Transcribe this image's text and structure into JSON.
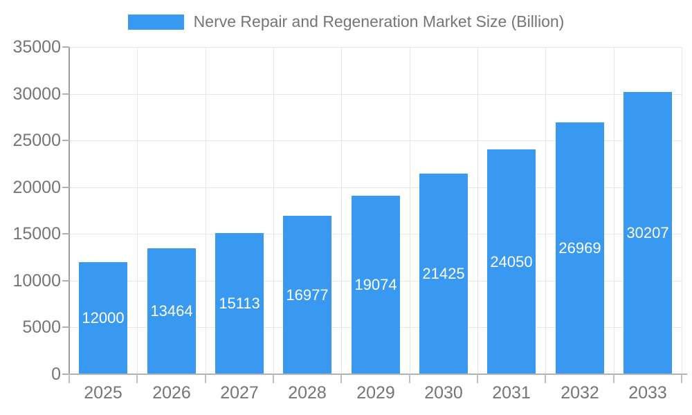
{
  "legend": {
    "swatch_icon": "legend-color-swatch"
  },
  "chart_data": {
    "type": "bar",
    "title": "Nerve Repair and Regeneration Market Size (Billion)",
    "xlabel": "",
    "ylabel": "",
    "categories": [
      "2025",
      "2026",
      "2027",
      "2028",
      "2029",
      "2030",
      "2031",
      "2032",
      "2033"
    ],
    "values": [
      12000,
      13464,
      15113,
      16977,
      19074,
      21425,
      24050,
      26969,
      30207
    ],
    "ylim": [
      0,
      35000
    ],
    "yticks": [
      0,
      5000,
      10000,
      15000,
      20000,
      25000,
      30000,
      35000
    ],
    "grid": true,
    "legend_position": "top",
    "value_labels": "inside-center",
    "colors": {
      "bar": "#3999F0",
      "axis_text": "#757575",
      "value_text": "#ffffff",
      "grid_line": "#e6e6e6",
      "y_axis_line": "#9e9e9e",
      "x_axis_line": "#b3b3b3"
    }
  }
}
